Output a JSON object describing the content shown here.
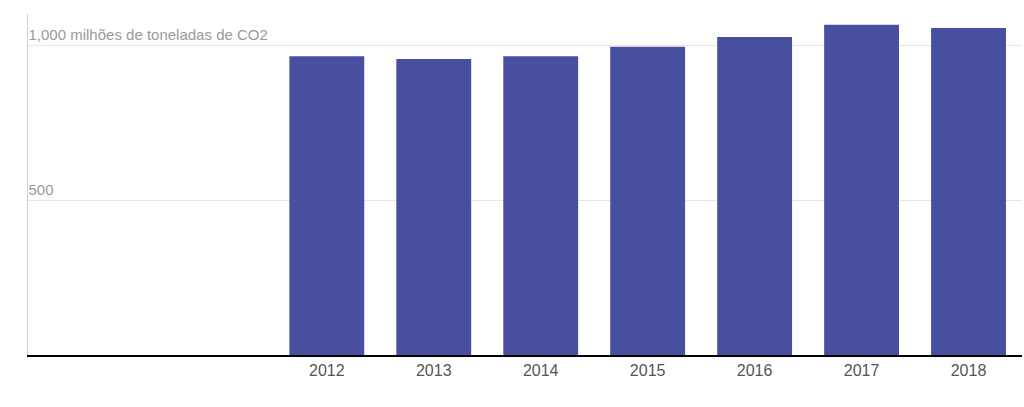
{
  "chart_data": {
    "type": "bar",
    "categories": [
      "2012",
      "2013",
      "2014",
      "2015",
      "2016",
      "2017",
      "2018"
    ],
    "values": [
      964,
      955,
      964,
      994,
      1026,
      1065,
      1055
    ],
    "color": "#474f9e",
    "ylim": [
      0,
      1100
    ],
    "yticks": [
      500,
      {
        "value": 1000,
        "label": "1,000 milhões de toneladas de CO2"
      }
    ],
    "grid": true
  }
}
